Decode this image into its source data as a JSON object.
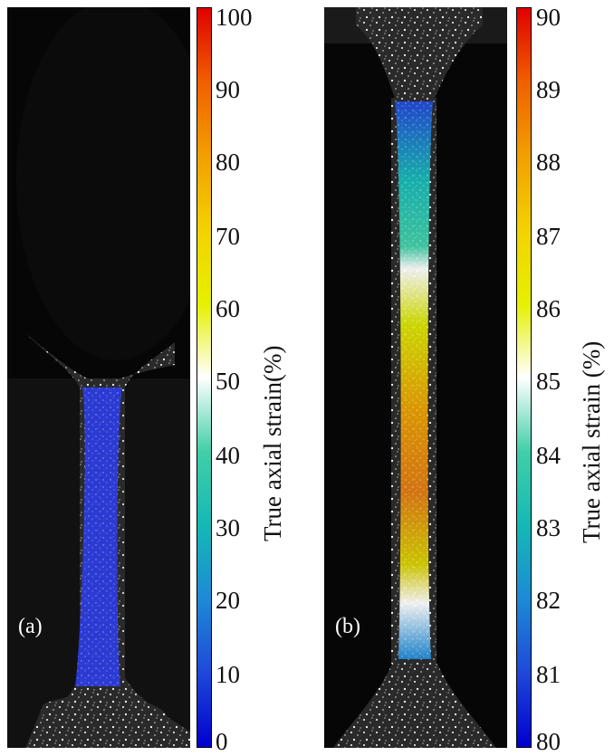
{
  "panels": [
    {
      "label": "(a)",
      "colorbar": {
        "title": "True axial strain(%)",
        "ticks": [
          "100",
          "90",
          "80",
          "70",
          "60",
          "50",
          "40",
          "30",
          "20",
          "10",
          "0"
        ]
      }
    },
    {
      "label": "(b)",
      "colorbar": {
        "title": "True axial strain (%)",
        "ticks": [
          "90",
          "89",
          "88",
          "87",
          "86",
          "85",
          "84",
          "83",
          "82",
          "81",
          "80"
        ]
      }
    }
  ],
  "colors": {
    "background": "#050505",
    "colormap_low": "#0000cd",
    "colormap_mid": "#ffffff",
    "colormap_high": "#e00000"
  }
}
